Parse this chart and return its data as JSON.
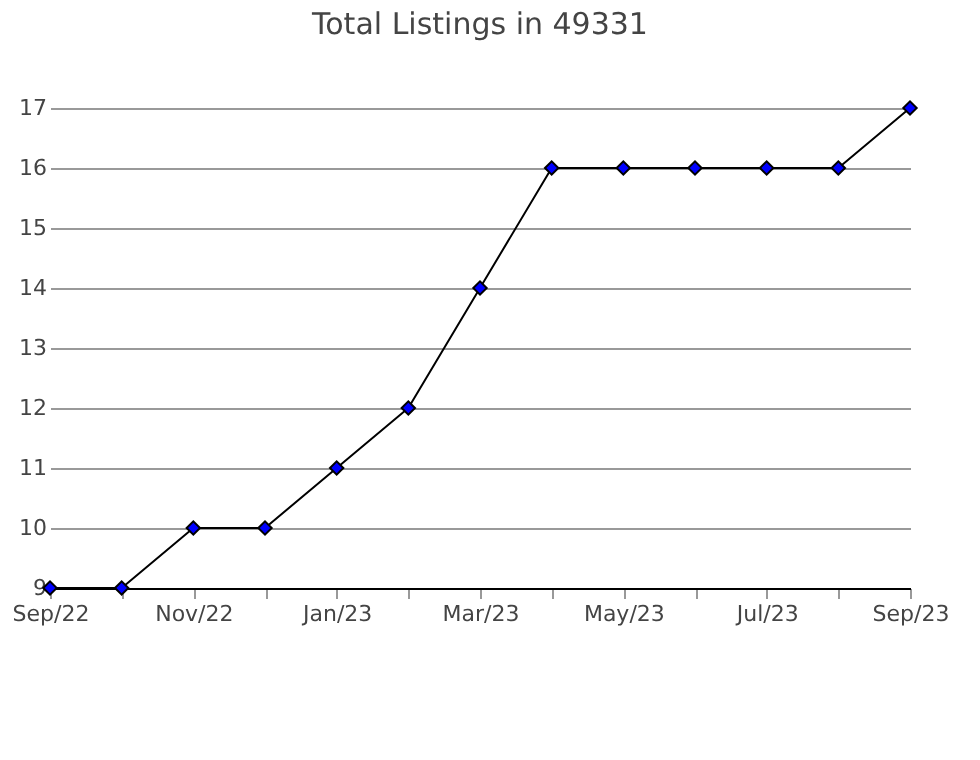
{
  "chart_data": {
    "type": "line",
    "title": "Total Listings in 49331",
    "categories": [
      "Sep/22",
      null,
      "Nov/22",
      null,
      "Jan/23",
      null,
      "Mar/23",
      null,
      "May/23",
      null,
      "Jul/23",
      null,
      "Sep/23"
    ],
    "series": [
      {
        "color": "#0000ff",
        "values": [
          9,
          9,
          10,
          10,
          11,
          12,
          14,
          16,
          16,
          16,
          16,
          16,
          17
        ]
      }
    ],
    "ylim": [
      9,
      17
    ],
    "yticks": [
      9,
      10,
      11,
      12,
      13,
      14,
      15,
      16,
      17
    ],
    "grid": "y",
    "marker": "diamond",
    "line_style": "solid"
  }
}
